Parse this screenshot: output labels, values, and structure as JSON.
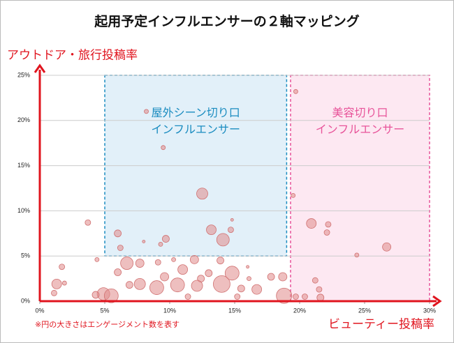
{
  "chart_data": {
    "type": "bubble",
    "title": "起用予定インフルエンサーの２軸マッピング",
    "y_label": "アウトドア・旅行投稿率",
    "x_label": "ビューティー投稿率",
    "note": "※円の大きさはエンゲージメント数を表す",
    "xlim": [
      0,
      30
    ],
    "ylim": [
      0,
      25
    ],
    "xticks": [
      {
        "value": 0,
        "label": "0%"
      },
      {
        "value": 5,
        "label": "5%"
      },
      {
        "value": 10,
        "label": "10%"
      },
      {
        "value": 15,
        "label": "15%"
      },
      {
        "value": 20,
        "label": "20%"
      },
      {
        "value": 25,
        "label": "25%"
      },
      {
        "value": 30,
        "label": "30%"
      }
    ],
    "yticks": [
      {
        "value": 0,
        "label": "0%"
      },
      {
        "value": 5,
        "label": "5%"
      },
      {
        "value": 10,
        "label": "10%"
      },
      {
        "value": 15,
        "label": "15%"
      },
      {
        "value": 20,
        "label": "20%"
      },
      {
        "value": 25,
        "label": "25%"
      }
    ],
    "grid": true,
    "regions": [
      {
        "x": [
          5,
          19
        ],
        "y": [
          5,
          25
        ],
        "color": "#1a8cc0",
        "fill": "#e2f0f9",
        "lines": [
          "屋外シーン切り口",
          "インフルエンサー"
        ]
      },
      {
        "x": [
          19.3,
          30
        ],
        "y": [
          0,
          25
        ],
        "color": "#e8549a",
        "fill": "#fde8f2",
        "lines": [
          "美容切り口",
          "インフルエンサー"
        ]
      }
    ],
    "color": "#e08a8a",
    "x": [
      9.5,
      8.2,
      12.5,
      19.7,
      19.5,
      3.7,
      20.9,
      22.2,
      22.1,
      13.2,
      14.7,
      14.8,
      9.7,
      6.0,
      14.1,
      9.3,
      8.0,
      6.2,
      26.7,
      24.4,
      4.4,
      1.7,
      1.3,
      1.9,
      1.1,
      6.7,
      7.7,
      9.1,
      11.9,
      13.9,
      14.8,
      14.0,
      10.6,
      7.7,
      6.0,
      6.9,
      4.9,
      4.3,
      5.5,
      9.6,
      9.0,
      11.0,
      12.4,
      13.0,
      12.1,
      15.5,
      16.7,
      17.8,
      18.7,
      18.8,
      19.7,
      21.2,
      21.5,
      21.6,
      20.4,
      16.1,
      11.4,
      15.2,
      16.0,
      10.3
    ],
    "values": [
      17.0,
      21.0,
      11.9,
      23.2,
      11.7,
      8.7,
      8.6,
      8.5,
      7.6,
      7.9,
      7.9,
      9.0,
      6.9,
      7.5,
      6.8,
      6.3,
      6.6,
      5.9,
      6.0,
      5.1,
      4.6,
      3.8,
      1.9,
      2.0,
      0.9,
      4.2,
      4.2,
      4.3,
      4.6,
      4.5,
      3.1,
      1.9,
      1.8,
      1.9,
      3.2,
      1.8,
      0.8,
      0.7,
      0.6,
      2.7,
      1.5,
      3.5,
      2.5,
      3.1,
      1.7,
      1.4,
      1.3,
      2.7,
      2.7,
      0.6,
      0.5,
      2.3,
      1.3,
      0.4,
      0.5,
      2.5,
      0.5,
      0.5,
      3.8,
      4.6
    ],
    "sizes": [
      3,
      3,
      8,
      3,
      3,
      4,
      7,
      4,
      4,
      7,
      4,
      2,
      5,
      5,
      9,
      3,
      2,
      4,
      6,
      3,
      3,
      4,
      7,
      3,
      4,
      9,
      6,
      4,
      6,
      5,
      10,
      12,
      10,
      8,
      5,
      5,
      9,
      5,
      10,
      6,
      10,
      7,
      5,
      5,
      8,
      5,
      7,
      5,
      6,
      11,
      4,
      4,
      4,
      5,
      4,
      3,
      4,
      4,
      2,
      3
    ]
  }
}
